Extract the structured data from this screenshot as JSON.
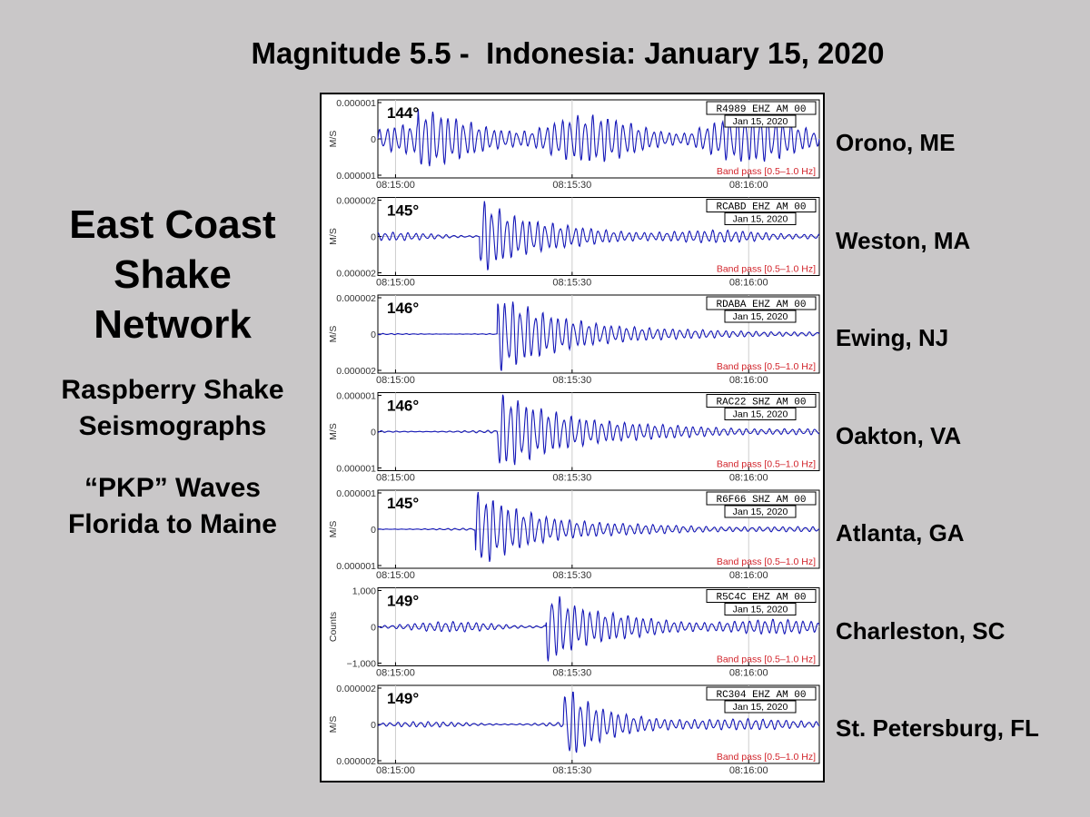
{
  "title": "Magnitude 5.5 -  Indonesia: January 15, 2020",
  "network": {
    "title_lines": [
      "East Coast",
      "Shake",
      "Network"
    ],
    "subtitle_lines": [
      "Raspberry Shake",
      "Seismographs"
    ],
    "waves_lines": [
      "“PKP” Waves",
      "Florida to Maine"
    ]
  },
  "chart_data": {
    "type": "line",
    "x_tick_labels": [
      "08:15:00",
      "08:15:30",
      "08:16:00"
    ],
    "date_label": "Jan 15, 2020",
    "filter_label": "Band pass [0.5–1.0 Hz]",
    "panels": [
      {
        "station": "Orono, ME",
        "distance": "144°",
        "channel": "R4989 EHZ AM 00",
        "ylabel": "M/S",
        "yticks": [
          "0.000001",
          "0",
          "0.000001"
        ],
        "onset": 0.09,
        "peak": 0.22,
        "decay": 0.05,
        "noise": 0.45
      },
      {
        "station": "Weston, MA",
        "distance": "145°",
        "channel": "RCABD EHZ AM 00",
        "ylabel": "M/S",
        "yticks": [
          "0.000002",
          "0",
          "0.000002"
        ],
        "onset": 0.23,
        "peak": 1.0,
        "decay": 0.35,
        "noise": 0.12
      },
      {
        "station": "Ewing, NJ",
        "distance": "146°",
        "channel": "RDABA EHZ AM 00",
        "ylabel": "M/S",
        "yticks": [
          "0.000002",
          "0",
          "0.000002"
        ],
        "onset": 0.27,
        "peak": 1.0,
        "decay": 0.8,
        "noise": 0.02
      },
      {
        "station": "Oakton, VA",
        "distance": "146°",
        "channel": "RAC22 SHZ AM 00",
        "ylabel": "M/S",
        "yticks": [
          "0.000001",
          "0",
          "0.000001"
        ],
        "onset": 0.27,
        "peak": 1.0,
        "decay": 0.9,
        "noise": 0.04
      },
      {
        "station": "Atlanta, GA",
        "distance": "145°",
        "channel": "R6F66 SHZ AM 00",
        "ylabel": "M/S",
        "yticks": [
          "0.000001",
          "0",
          "0.000001"
        ],
        "onset": 0.22,
        "peak": 1.0,
        "decay": 0.6,
        "noise": 0.03
      },
      {
        "station": "Charleston, SC",
        "distance": "149°",
        "channel": "R5C4C EHZ AM 00",
        "ylabel": "Counts",
        "yticks": [
          "1,000",
          "0",
          "−1,000"
        ],
        "onset": 0.38,
        "peak": 1.0,
        "decay": 0.25,
        "noise": 0.15
      },
      {
        "station": "St. Petersburg, FL",
        "distance": "149°",
        "channel": "RC304 EHZ AM 00",
        "ylabel": "M/S",
        "yticks": [
          "0.000002",
          "0",
          "0.000002"
        ],
        "onset": 0.42,
        "peak": 1.0,
        "decay": 0.2,
        "noise": 0.08
      }
    ]
  }
}
